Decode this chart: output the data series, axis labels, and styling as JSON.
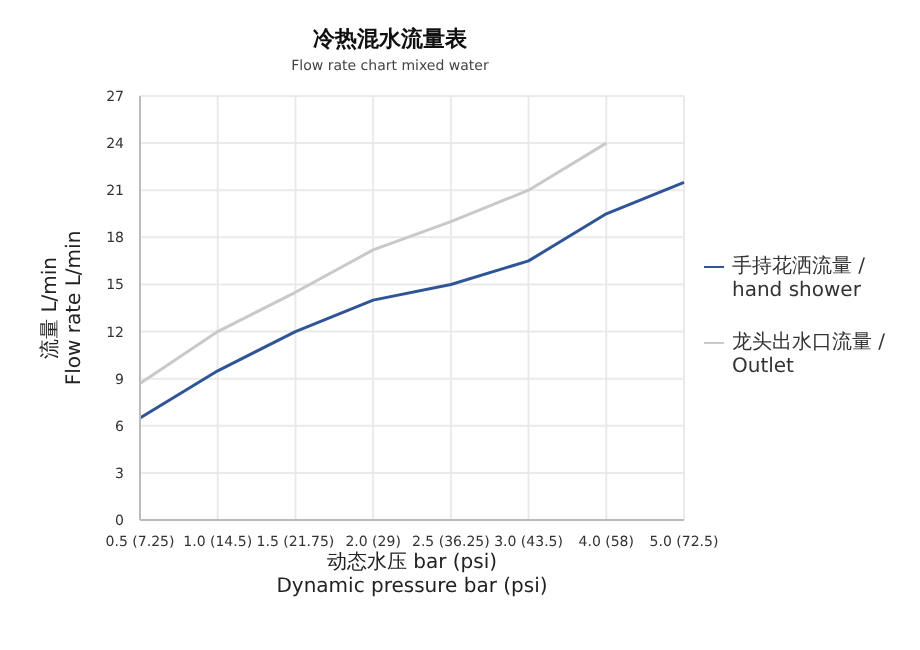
{
  "chart_data": {
    "type": "line",
    "title": "冷热混水流量表",
    "subtitle": "Flow rate chart mixed water",
    "xlabel": "动态水压  bar (psi)\nDynamic pressure bar (psi)",
    "ylabel": "流量 L/min\nFlow rate L/min",
    "categories": [
      "0.5 (7.25)",
      "1.0 (14.5)",
      "1.5 (21.75)",
      "2.0 (29)",
      "2.5 (36.25)",
      "3.0 (43.5)",
      "4.0 (58)",
      "5.0 (72.5)"
    ],
    "series": [
      {
        "name": "手持花洒流量 / hand shower",
        "color": "#2f5597",
        "values": [
          6.5,
          9.5,
          12,
          14,
          15,
          16.5,
          19.5,
          21.5
        ]
      },
      {
        "name": "龙头出水口流量 / Outlet",
        "color": "#c9c9c9",
        "values": [
          8.7,
          12,
          14.5,
          17.2,
          19,
          21,
          24,
          null
        ]
      }
    ],
    "ylim": [
      0,
      27
    ],
    "yticks": [
      0,
      3,
      6,
      9,
      12,
      15,
      18,
      21,
      24,
      27
    ],
    "grid": true,
    "legend": "right",
    "marker": "none",
    "line_style": "solid"
  }
}
